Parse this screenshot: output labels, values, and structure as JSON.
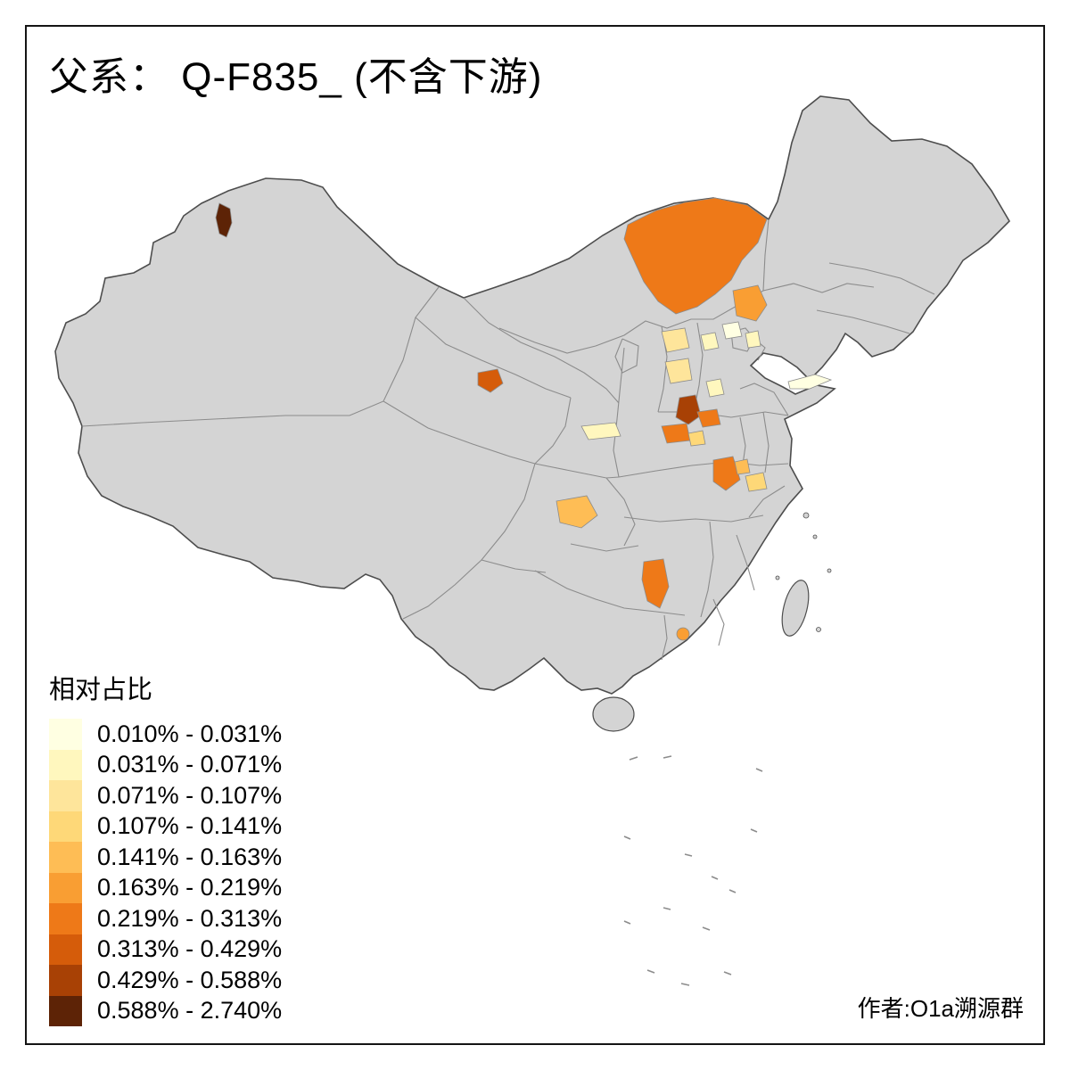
{
  "title": "父系： Q-F835_ (不含下游)",
  "legend": {
    "title": "相对占比",
    "classes": [
      {
        "label": "0.010% - 0.031%",
        "color": "#FFFFE2"
      },
      {
        "label": "0.031% - 0.071%",
        "color": "#FFF7BE"
      },
      {
        "label": "0.071% - 0.107%",
        "color": "#FEE59B"
      },
      {
        "label": "0.107% - 0.141%",
        "color": "#FED878"
      },
      {
        "label": "0.141% - 0.163%",
        "color": "#FEBD55"
      },
      {
        "label": "0.163% - 0.219%",
        "color": "#F99E33"
      },
      {
        "label": "0.219% - 0.313%",
        "color": "#EE7918"
      },
      {
        "label": "0.313% - 0.429%",
        "color": "#D55C0A"
      },
      {
        "label": "0.429% - 0.588%",
        "color": "#A84105"
      },
      {
        "label": "0.588% - 2.740%",
        "color": "#5D2306"
      }
    ]
  },
  "attribution": "作者:O1a溯源群",
  "map": {
    "land_fill": "#D4D4D4",
    "province_stroke": "#8C8C8C",
    "national_stroke": "#4D4D4D",
    "background": "#FFFFFF",
    "frame_stroke": "#141414"
  }
}
